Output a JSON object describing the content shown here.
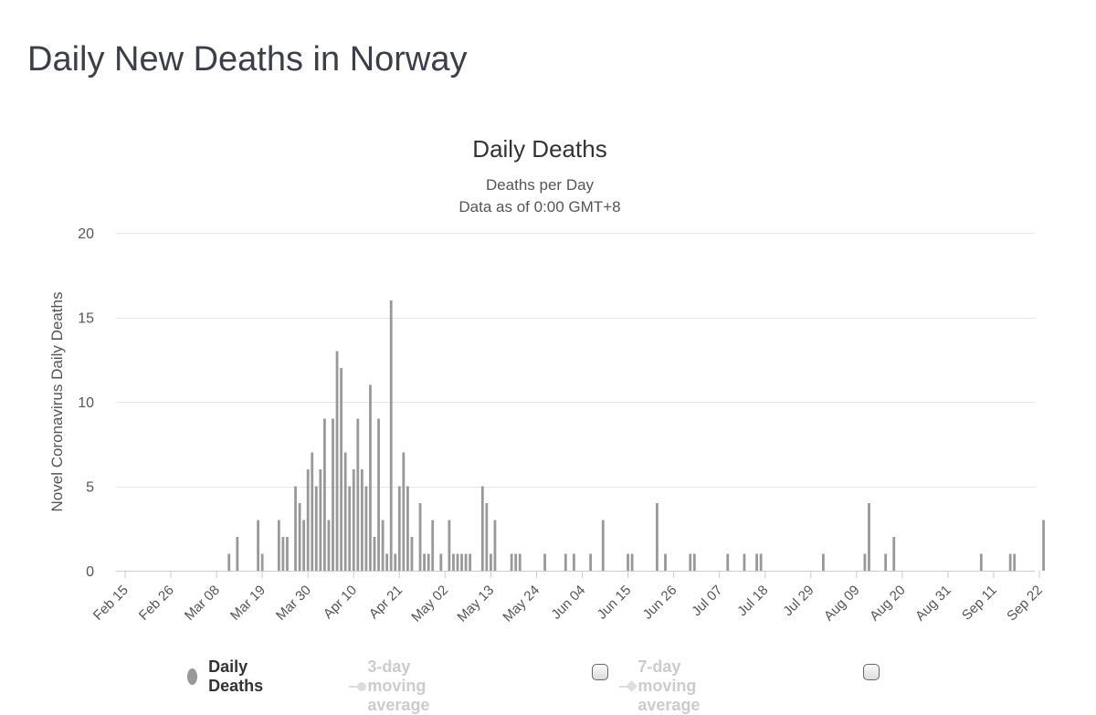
{
  "page": {
    "title": "Daily New Deaths in Norway"
  },
  "legend": {
    "daily": "Daily Deaths",
    "avg3": "3-day moving average",
    "avg7": "7-day moving average"
  },
  "chart_data": {
    "type": "bar",
    "title": "Daily Deaths",
    "subtitle": "Deaths per Day",
    "subtitle2": "Data as of 0:00 GMT+8",
    "ylabel": "Novel Coronavirus Daily Deaths",
    "xlabel": "",
    "ylim": [
      0,
      20
    ],
    "yticks": [
      0,
      5,
      10,
      15,
      20
    ],
    "grid": true,
    "series_color": "#999999",
    "start_date": "Feb 15",
    "x_tick_labels": [
      "Feb 15",
      "Feb 26",
      "Mar 08",
      "Mar 19",
      "Mar 30",
      "Apr 10",
      "Apr 21",
      "May 02",
      "May 13",
      "May 24",
      "Jun 04",
      "Jun 15",
      "Jun 26",
      "Jul 07",
      "Jul 18",
      "Jul 29",
      "Aug 09",
      "Aug 20",
      "Aug 31",
      "Sep 11",
      "Sep 22"
    ],
    "x_tick_interval_days": 11,
    "values": [
      0,
      0,
      0,
      0,
      0,
      0,
      0,
      0,
      0,
      0,
      0,
      0,
      0,
      0,
      0,
      0,
      0,
      0,
      0,
      0,
      0,
      0,
      0,
      0,
      0,
      1,
      0,
      2,
      0,
      0,
      0,
      0,
      3,
      1,
      0,
      0,
      0,
      3,
      2,
      2,
      0,
      5,
      4,
      3,
      6,
      7,
      5,
      6,
      9,
      3,
      9,
      13,
      12,
      7,
      5,
      6,
      9,
      6,
      5,
      11,
      2,
      9,
      3,
      1,
      16,
      1,
      5,
      7,
      5,
      2,
      0,
      4,
      1,
      1,
      3,
      0,
      1,
      0,
      3,
      1,
      1,
      1,
      1,
      1,
      0,
      0,
      5,
      4,
      1,
      3,
      0,
      0,
      0,
      1,
      1,
      1,
      0,
      0,
      0,
      0,
      0,
      1,
      0,
      0,
      0,
      0,
      1,
      0,
      1,
      0,
      0,
      0,
      1,
      0,
      0,
      3,
      0,
      0,
      0,
      0,
      0,
      1,
      1,
      0,
      0,
      0,
      0,
      0,
      4,
      0,
      1,
      0,
      0,
      0,
      0,
      0,
      1,
      1,
      0,
      0,
      0,
      0,
      0,
      0,
      0,
      1,
      0,
      0,
      0,
      1,
      0,
      0,
      1,
      1,
      0,
      0,
      0,
      0,
      0,
      0,
      0,
      0,
      0,
      0,
      0,
      0,
      0,
      0,
      1,
      0,
      0,
      0,
      0,
      0,
      0,
      0,
      0,
      0,
      1,
      4,
      0,
      0,
      0,
      1,
      0,
      2,
      0,
      0,
      0,
      0,
      0,
      0,
      0,
      0,
      0,
      0,
      0,
      0,
      0,
      0,
      0,
      0,
      0,
      0,
      0,
      0,
      1,
      0,
      0,
      0,
      0,
      0,
      0,
      1,
      1,
      0,
      0,
      0,
      0,
      0,
      0,
      3
    ]
  }
}
